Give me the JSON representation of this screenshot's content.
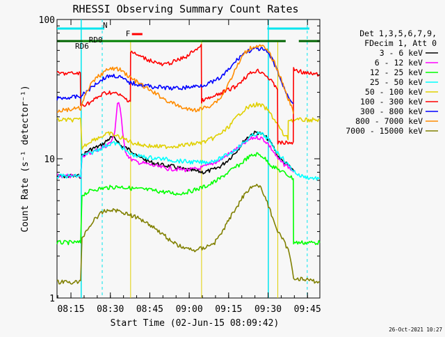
{
  "chart_data": {
    "type": "line",
    "title": "RHESSI Observing Summary Count Rates",
    "xlabel": "Start Time (02-Jun-15 08:09:42)",
    "ylabel": "Count Rate (s⁻¹ detector⁻¹)",
    "yscale": "log",
    "ylim": [
      1,
      100
    ],
    "xlim_min": [
      0,
      100
    ],
    "x_tick_labels": [
      "08:15",
      "08:30",
      "08:45",
      "09:00",
      "09:15",
      "09:30",
      "09:45"
    ],
    "x_ticks_min": [
      5.3,
      20.3,
      35.3,
      50.3,
      65.3,
      80.3,
      95.3
    ],
    "y_tick_labels": [
      "1",
      "10",
      "100"
    ],
    "y_ticks": [
      1,
      10,
      100
    ],
    "legend_position": "top-right",
    "legend_header": [
      "Det 1,3,5,6,7,9,",
      "FDecim 1, Att 0"
    ],
    "timestamp": "26-Oct-2021 10:27",
    "series": [
      {
        "name": "3 - 6 keV",
        "color": "#000000",
        "x": [
          0,
          9,
          9.5,
          12,
          17,
          19,
          20,
          21,
          22,
          23,
          24,
          26,
          28,
          30,
          31,
          33,
          34,
          36,
          40,
          44,
          48,
          52,
          56,
          60,
          62,
          64,
          66,
          68,
          70,
          72,
          74,
          76,
          78,
          80,
          82,
          84,
          86,
          88,
          90
        ],
        "y": [
          7.5,
          7.5,
          10.5,
          11.5,
          12.5,
          13.5,
          14,
          14.2,
          14,
          13.5,
          12.5,
          12,
          11.5,
          11,
          10.2,
          10,
          9.7,
          9.4,
          9,
          8.8,
          8.4,
          8.2,
          8.0,
          8.4,
          8.8,
          9.4,
          10.2,
          11.2,
          12.5,
          14,
          15,
          15.5,
          15,
          14,
          12.5,
          10.5,
          9.5,
          9,
          8.2
        ]
      },
      {
        "name": "6 - 12 keV",
        "color": "#ff00ff",
        "x": [
          0,
          9,
          9.5,
          13,
          17,
          19,
          21,
          22,
          22.5,
          23,
          23.5,
          24,
          24.5,
          25,
          25.5,
          26,
          27,
          28,
          30,
          34,
          38,
          42,
          46,
          50,
          54,
          58,
          62,
          66,
          70,
          72,
          74,
          76,
          78,
          80,
          82,
          84,
          86,
          88,
          90
        ],
        "y": [
          7.5,
          7.5,
          10.5,
          11,
          12,
          12.5,
          13.5,
          16,
          20,
          25,
          25.5,
          23,
          19,
          15,
          13,
          11.5,
          10.5,
          10,
          9.5,
          9.2,
          8.8,
          8.5,
          8.4,
          8.3,
          8.5,
          9,
          9.8,
          11,
          12.3,
          13.2,
          14,
          14.3,
          14,
          13,
          11.5,
          10,
          9.2,
          8.8,
          8.0
        ]
      },
      {
        "name": "12 - 25 keV",
        "color": "#00ff00",
        "x": [
          0,
          9,
          9.5,
          14,
          19,
          24,
          29,
          34,
          40,
          46,
          50,
          54,
          58,
          62,
          66,
          70,
          72,
          74,
          76,
          78,
          80,
          82,
          84,
          86,
          88,
          89.9,
          90,
          100
        ],
        "y": [
          2.5,
          2.5,
          5.5,
          6,
          6.2,
          6.3,
          6.1,
          6.0,
          5.8,
          5.6,
          5.8,
          6.1,
          6.5,
          7.2,
          8.2,
          9.2,
          10,
          10.5,
          10.8,
          10.5,
          9.6,
          8.8,
          8.4,
          8.0,
          7.6,
          7.2,
          2.5,
          2.5
        ]
      },
      {
        "name": "25 - 50 keV",
        "color": "#00ffff",
        "x": [
          0,
          9,
          9.5,
          13,
          17,
          19,
          21,
          23,
          25,
          27,
          30,
          35,
          40,
          45,
          50,
          55,
          58,
          62,
          66,
          70,
          72,
          74,
          76,
          78,
          80,
          82,
          84,
          86,
          88,
          90,
          92,
          96,
          100
        ],
        "y": [
          7.5,
          7.5,
          10.5,
          11,
          12,
          12.5,
          13,
          12.8,
          12,
          11,
          10.5,
          10.2,
          10,
          9.7,
          9.5,
          9.4,
          9.5,
          10,
          11,
          12.5,
          13.5,
          14.5,
          15.2,
          15,
          14,
          12.5,
          11,
          10,
          9,
          8.2,
          7.6,
          7.3,
          7.2
        ]
      },
      {
        "name": "50 - 100 keV",
        "color": "#e0d000",
        "x": [
          0,
          9,
          9.5,
          13,
          17,
          19,
          20,
          21,
          23,
          26,
          29,
          32,
          36,
          40,
          44,
          48,
          52,
          56,
          60,
          64,
          66,
          68,
          70,
          72,
          74,
          76,
          78,
          80,
          82,
          84,
          86,
          87.9,
          88,
          95,
          100
        ],
        "y": [
          19,
          19,
          12,
          13.5,
          14.5,
          15,
          15.2,
          15,
          14.5,
          13.8,
          13,
          12.6,
          12.3,
          12.2,
          12.3,
          12.5,
          12.8,
          13.2,
          14.2,
          16,
          17.5,
          19.5,
          21.5,
          23,
          24,
          24.5,
          24,
          22.5,
          20,
          17.5,
          15,
          14,
          19,
          19,
          19
        ]
      },
      {
        "name": "100 - 300 keV",
        "color": "#ff0000",
        "x": [
          0,
          8.9,
          9,
          13,
          16,
          18,
          20,
          22,
          24,
          26,
          27.9,
          28,
          30,
          34,
          38,
          40,
          42,
          46,
          50,
          52,
          54.9,
          55,
          60,
          64,
          68,
          70,
          72,
          74,
          76,
          78,
          80,
          82,
          83.9,
          84,
          89.9,
          90,
          95,
          100
        ],
        "y": [
          41,
          41,
          24,
          25.5,
          28,
          29.5,
          30,
          29.5,
          28.5,
          27,
          26,
          59,
          56,
          52,
          49,
          47,
          48,
          51,
          55,
          60,
          64,
          26,
          28,
          30.5,
          33,
          36,
          39,
          41.5,
          43,
          42,
          39,
          35,
          32,
          13,
          13,
          44,
          41,
          40
        ]
      },
      {
        "name": "300 - 800 keV",
        "color": "#0000ff",
        "x": [
          0,
          9,
          12,
          15,
          18,
          20,
          22,
          24,
          26,
          28,
          32,
          36,
          40,
          44,
          48,
          52,
          56,
          60,
          62,
          64,
          66,
          68,
          70,
          72,
          74,
          76,
          78,
          80,
          82,
          84,
          86,
          88,
          90
        ],
        "y": [
          27,
          28,
          31,
          35,
          38,
          39.5,
          39.5,
          38.5,
          36.5,
          35,
          34,
          33,
          32.5,
          32,
          32.3,
          33,
          34,
          36,
          38,
          41,
          45,
          50,
          55,
          58.5,
          60.5,
          61.5,
          61,
          58,
          51,
          42,
          33,
          28,
          25
        ]
      },
      {
        "name": "800 - 7000 keV",
        "color": "#ff8c00",
        "x": [
          0,
          9,
          12,
          15,
          18,
          20,
          22,
          24,
          26,
          28,
          31,
          34,
          38,
          42,
          46,
          50,
          54,
          58,
          62,
          64,
          66,
          68,
          70,
          72,
          74,
          76,
          78,
          80,
          82,
          84,
          86,
          88,
          89.5,
          90
        ],
        "y": [
          22,
          23,
          32,
          38,
          42,
          44,
          44.5,
          43.5,
          41,
          38,
          35,
          32,
          29,
          26,
          24,
          22.5,
          22.5,
          24,
          27,
          31,
          37,
          44,
          52,
          59,
          63,
          65,
          64,
          60,
          52,
          43,
          34,
          27,
          23,
          21
        ]
      },
      {
        "name": "7000 - 15000 keV",
        "color": "#808000",
        "x": [
          0,
          9,
          9.5,
          12,
          15,
          18,
          21,
          24,
          27,
          30,
          33,
          36,
          40,
          44,
          48,
          52,
          56,
          60,
          63,
          66,
          69,
          72,
          74,
          76,
          78,
          80,
          82,
          84,
          86,
          88,
          90,
          100
        ],
        "y": [
          1.3,
          1.3,
          2.7,
          3.2,
          3.8,
          4.2,
          4.3,
          4.2,
          4.0,
          3.8,
          3.6,
          3.3,
          2.9,
          2.5,
          2.3,
          2.2,
          2.3,
          2.5,
          3.0,
          3.8,
          4.7,
          5.8,
          6.3,
          6.5,
          6.0,
          4.8,
          3.8,
          3.0,
          2.6,
          2.2,
          1.4,
          1.3
        ]
      }
    ],
    "status_bars": [
      {
        "label": "N",
        "color": "#00e5ee",
        "row": "top",
        "segments": [
          [
            0,
            18
          ],
          [
            80,
            96
          ]
        ]
      },
      {
        "label": "F",
        "color": "#ff0000",
        "row": "mid",
        "segments": [
          [
            28.5,
            32.5
          ]
        ]
      },
      {
        "label": "RD0",
        "color": "#008000",
        "row": "rd0",
        "segments": [
          [
            10,
            55
          ]
        ]
      },
      {
        "label": "RD6",
        "color": "#006400",
        "row": "rd6",
        "segments": [
          [
            0,
            10
          ],
          [
            55,
            87
          ],
          [
            92,
            100
          ]
        ]
      }
    ],
    "vertical_lines": {
      "night_solid": [
        9.2,
        80.4
      ],
      "night_dashed": [
        17.2,
        95.2
      ],
      "attenuator": [
        28,
        55,
        84
      ]
    }
  }
}
